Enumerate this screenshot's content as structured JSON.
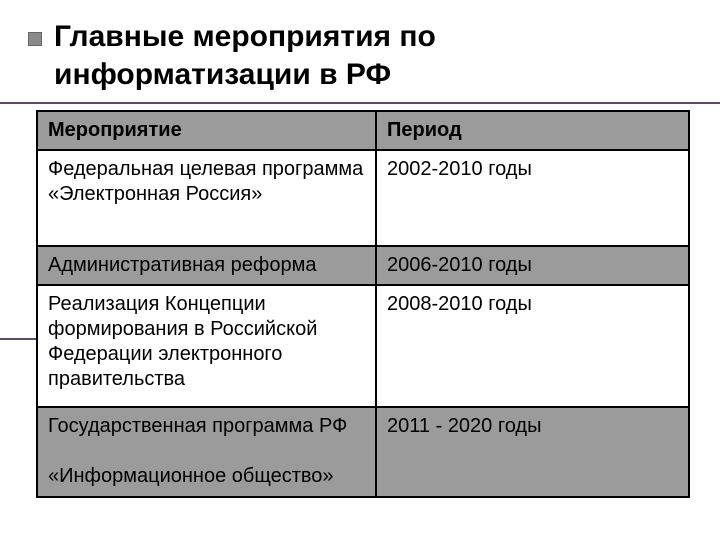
{
  "title": {
    "line1": "Главные мероприятия по",
    "line2": "информатизации в РФ"
  },
  "table": {
    "headers": {
      "event": "Мероприятие",
      "period": "Период"
    },
    "rows": [
      {
        "event": "Федеральная целевая программа «Электронная Россия»",
        "period": "2002-2010 годы",
        "bg": "white"
      },
      {
        "event": "Административная реформа",
        "period": "2006-2010 годы",
        "bg": "gray"
      },
      {
        "event": "Реализация Концепции формирования в Российской Федерации электронного правительства",
        "period": "2008-2010 годы",
        "bg": "white"
      },
      {
        "event": "Государственная программа РФ  «Информационное общество»",
        "period": "2011 - 2020 годы",
        "bg": "gray"
      }
    ]
  },
  "colors": {
    "header_bg": "#9b9b9b",
    "gray_row_bg": "#9b9b9b",
    "white_row_bg": "#ffffff",
    "border": "#000000",
    "accent_line": "#5b4a6b",
    "bullet_fill": "#8b8b8b",
    "text": "#000000"
  },
  "layout": {
    "slide_width": 720,
    "slide_height": 540,
    "col1_width_pct": 52,
    "col2_width_pct": 48,
    "title_fontsize": 30,
    "cell_fontsize": 20
  }
}
